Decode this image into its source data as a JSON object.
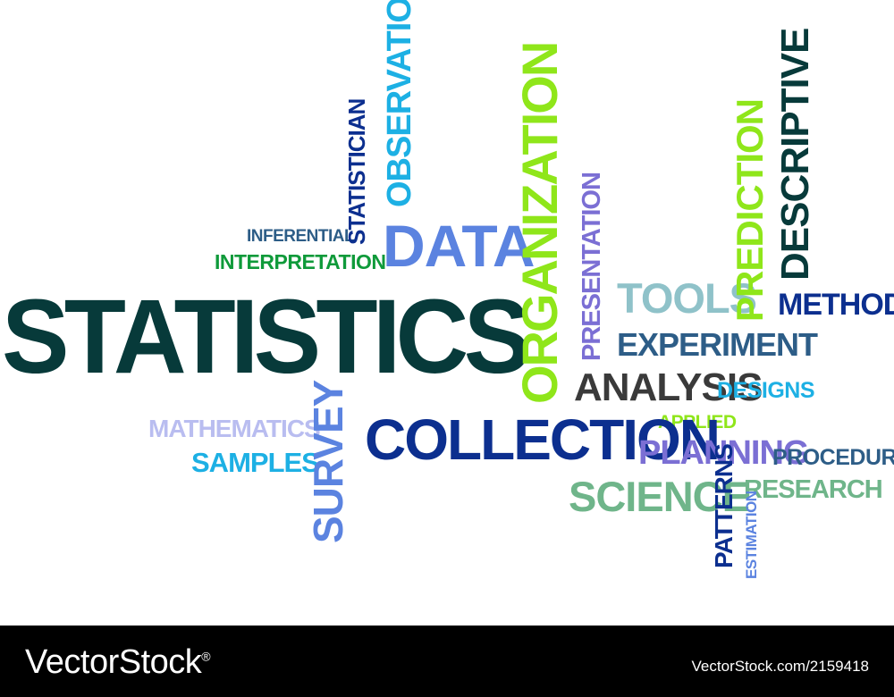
{
  "colors": {
    "dark": "#073a3a",
    "navy": "#0c2f8f",
    "steel": "#2d5d87",
    "royal": "#3553c7",
    "cornflower": "#5b83e0",
    "sky": "#1db0e4",
    "violet": "#7b6fd4",
    "lavender": "#b9bdf0",
    "lime": "#8fe61a",
    "green": "#0f9a3a",
    "sage": "#6fb58a",
    "powder": "#8fc2c9",
    "gray": "#3a3a3a",
    "footer": "#000000"
  },
  "words": {
    "statistics": "STATISTICS",
    "data": "DATA",
    "organization": "ORGANIZATION",
    "observation": "OBSERVATION",
    "statistician": "STATISTICIAN",
    "inferential": "INFERENTIAL",
    "interpretation": "INTERPRETATION",
    "presentation": "PRESENTATION",
    "tools": "TOOLS",
    "prediction": "PREDICTION",
    "descriptive": "DESCRIPTIVE",
    "methods": "METHODS",
    "experiment": "EXPERIMENT",
    "analysis": "ANALYSIS",
    "designs": "DESIGNS",
    "applied": "APPLIED",
    "mathematics": "MATHEMATICS",
    "samples": "SAMPLES",
    "survey": "SURVEY",
    "collection": "COLLECTION",
    "planning": "PLANNING",
    "procedures": "PROCEDURES",
    "science": "SCIENCE",
    "patterns": "PATTERNS",
    "research": "RESEARCH",
    "estimation": "ESTIMATION"
  },
  "footer": {
    "logo": "VectorStock",
    "logo_mark": "®",
    "site": "VectorStock.com/2159418"
  }
}
